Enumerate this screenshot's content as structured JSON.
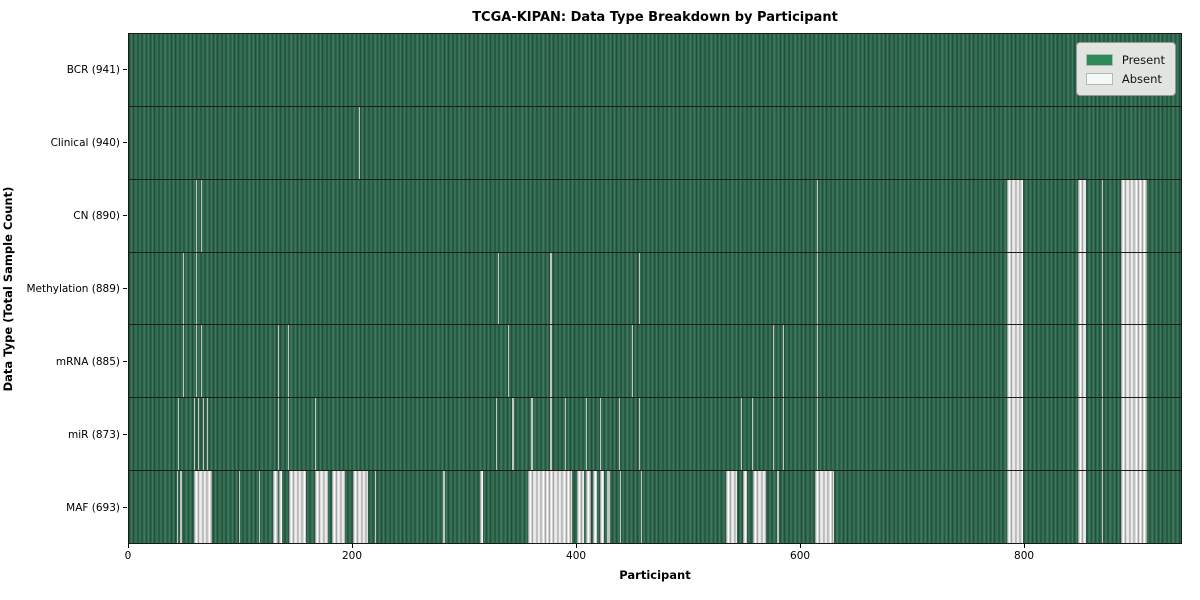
{
  "title": "TCGA-KIPAN: Data Type Breakdown by Participant",
  "axes": {
    "x_label": "Participant",
    "y_label": "Data Type (Total Sample Count)",
    "x_ticks": [
      "0",
      "200",
      "400",
      "600",
      "800"
    ]
  },
  "legend": {
    "items": [
      {
        "label": "Present",
        "color": "#2e8b57"
      },
      {
        "label": "Absent",
        "color": "#ffffff"
      }
    ]
  },
  "chart_data": {
    "type": "heatmap",
    "title": "TCGA-KIPAN: Data Type Breakdown by Participant",
    "xlabel": "Participant",
    "ylabel": "Data Type (Total Sample Count)",
    "x_range": [
      0,
      941
    ],
    "x_tick_values": [
      0,
      200,
      400,
      600,
      800
    ],
    "legend_position": "upper right",
    "present_color": "#2e8b57",
    "absent_color": "#ffffff",
    "value_legend": {
      "present": "Present",
      "absent": "Absent"
    },
    "rows": [
      {
        "name": "BCR",
        "label": "BCR (941)",
        "total_samples": 941,
        "absent_ranges": []
      },
      {
        "name": "Clinical",
        "label": "Clinical (940)",
        "total_samples": 940,
        "absent_ranges": [
          [
            206,
            207
          ]
        ]
      },
      {
        "name": "CN",
        "label": "CN (890)",
        "total_samples": 890,
        "absent_ranges": [
          [
            60,
            61
          ],
          [
            64,
            65
          ],
          [
            615,
            616
          ],
          [
            785,
            800
          ],
          [
            849,
            856
          ],
          [
            870,
            871
          ],
          [
            887,
            911
          ]
        ]
      },
      {
        "name": "Methylation",
        "label": "Methylation (889)",
        "total_samples": 889,
        "absent_ranges": [
          [
            48,
            49
          ],
          [
            60,
            61
          ],
          [
            330,
            331
          ],
          [
            377,
            378
          ],
          [
            456,
            457
          ],
          [
            615,
            616
          ],
          [
            785,
            800
          ],
          [
            849,
            856
          ],
          [
            870,
            871
          ],
          [
            887,
            911
          ]
        ]
      },
      {
        "name": "mRNA",
        "label": "mRNA (885)",
        "total_samples": 885,
        "absent_ranges": [
          [
            48,
            49
          ],
          [
            60,
            61
          ],
          [
            64,
            65
          ],
          [
            133,
            134
          ],
          [
            142,
            143
          ],
          [
            339,
            340
          ],
          [
            377,
            378
          ],
          [
            450,
            451
          ],
          [
            576,
            577
          ],
          [
            585,
            586
          ],
          [
            615,
            616
          ],
          [
            785,
            800
          ],
          [
            849,
            856
          ],
          [
            870,
            871
          ],
          [
            887,
            911
          ]
        ]
      },
      {
        "name": "miR",
        "label": "miR (873)",
        "total_samples": 873,
        "absent_ranges": [
          [
            44,
            45
          ],
          [
            58,
            59
          ],
          [
            62,
            63
          ],
          [
            66,
            67
          ],
          [
            70,
            71
          ],
          [
            133,
            134
          ],
          [
            142,
            143
          ],
          [
            166,
            167
          ],
          [
            328,
            329
          ],
          [
            343,
            344
          ],
          [
            360,
            361
          ],
          [
            377,
            378
          ],
          [
            390,
            391
          ],
          [
            409,
            410
          ],
          [
            421,
            422
          ],
          [
            438,
            439
          ],
          [
            456,
            457
          ],
          [
            547,
            548
          ],
          [
            557,
            558
          ],
          [
            576,
            577
          ],
          [
            585,
            586
          ],
          [
            615,
            616
          ],
          [
            785,
            800
          ],
          [
            849,
            856
          ],
          [
            870,
            871
          ],
          [
            887,
            911
          ]
        ]
      },
      {
        "name": "MAF",
        "label": "MAF (693)",
        "total_samples": 693,
        "absent_ranges": [
          [
            43,
            44
          ],
          [
            46,
            47
          ],
          [
            58,
            74
          ],
          [
            98,
            99
          ],
          [
            116,
            117
          ],
          [
            129,
            133
          ],
          [
            134,
            137
          ],
          [
            143,
            158
          ],
          [
            166,
            178
          ],
          [
            182,
            193
          ],
          [
            200,
            214
          ],
          [
            220,
            221
          ],
          [
            281,
            283
          ],
          [
            314,
            317
          ],
          [
            357,
            396
          ],
          [
            401,
            407
          ],
          [
            409,
            413
          ],
          [
            415,
            419
          ],
          [
            421,
            425
          ],
          [
            428,
            430
          ],
          [
            439,
            440
          ],
          [
            458,
            459
          ],
          [
            534,
            544
          ],
          [
            549,
            553
          ],
          [
            558,
            570
          ],
          [
            580,
            581
          ],
          [
            614,
            631
          ],
          [
            785,
            800
          ],
          [
            849,
            856
          ],
          [
            870,
            871
          ],
          [
            887,
            911
          ]
        ]
      }
    ]
  }
}
